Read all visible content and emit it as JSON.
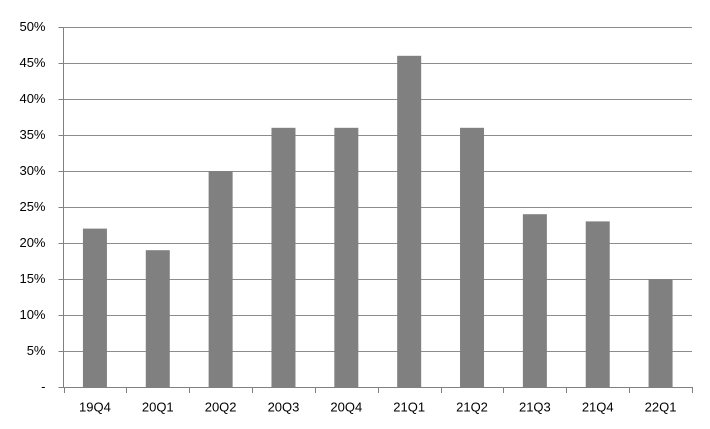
{
  "chart_data": {
    "type": "bar",
    "categories": [
      "19Q4",
      "20Q1",
      "20Q2",
      "20Q3",
      "20Q4",
      "21Q1",
      "21Q2",
      "21Q3",
      "21Q4",
      "22Q1"
    ],
    "values": [
      22,
      19,
      30,
      36,
      36,
      46,
      36,
      24,
      23,
      15
    ],
    "color": "#808080",
    "ylim": [
      0,
      50
    ],
    "yticks": [
      {
        "value": 0,
        "label": "-"
      },
      {
        "value": 5,
        "label": "5%"
      },
      {
        "value": 10,
        "label": "10%"
      },
      {
        "value": 15,
        "label": "15%"
      },
      {
        "value": 20,
        "label": "20%"
      },
      {
        "value": 25,
        "label": "25%"
      },
      {
        "value": 30,
        "label": "30%"
      },
      {
        "value": 35,
        "label": "35%"
      },
      {
        "value": 40,
        "label": "40%"
      },
      {
        "value": 45,
        "label": "45%"
      },
      {
        "value": 50,
        "label": "50%"
      }
    ],
    "grid": true
  }
}
